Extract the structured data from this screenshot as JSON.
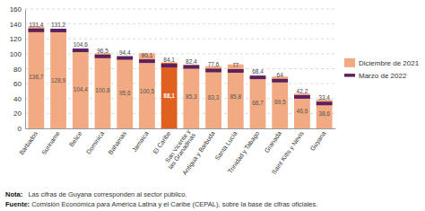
{
  "chart_data": {
    "type": "bar",
    "categories": [
      "Barbados",
      "Suriname",
      "Belice",
      "Dominica",
      "Bahamas",
      "Jamaica",
      "El Caribe",
      "San Vicente y\nlas Granadinas",
      "Antigua y Barbuda",
      "Santa Lucía",
      "Trinidad y Tabago",
      "Granada",
      "Saint Kitts y Nevis",
      "Guyana"
    ],
    "series": [
      {
        "name": "Diciembre de 2021",
        "type": "bar",
        "colors": [
          "#f2aa82",
          "#f2aa82",
          "#f2aa82",
          "#f2aa82",
          "#f2aa82",
          "#f2aa82",
          "#e06020",
          "#f2aa82",
          "#f2aa82",
          "#f2aa82",
          "#f2aa82",
          "#f2aa82",
          "#f2aa82",
          "#f2aa82"
        ],
        "values": [
          136.7,
          128.9,
          104.4,
          100.8,
          95.6,
          100.5,
          88.1,
          85.3,
          83.3,
          85.8,
          68.7,
          69.5,
          46.6,
          38.6
        ],
        "value_labels": [
          "136,7",
          "128,9",
          "104,4",
          "100,8",
          "95,6",
          "100,5",
          "88,1",
          "85,3",
          "83,3",
          "85,8",
          "68,7",
          "69,5",
          "46,6",
          "38,6"
        ]
      },
      {
        "name": "Marzo de 2022",
        "type": "scatter",
        "marker": "hline",
        "color": "#5b2060",
        "values": [
          131.4,
          131.2,
          104.6,
          96.5,
          94.4,
          90.1,
          84.1,
          82.4,
          77.6,
          77.0,
          68.4,
          64.0,
          42.2,
          33.4
        ],
        "value_labels": [
          "131,4",
          "131,2",
          "104,6",
          "96,5",
          "94,4",
          "90,1",
          "84,1",
          "82,4",
          "77,6",
          "77",
          "68,4",
          "64",
          "42,2",
          "33,4"
        ]
      }
    ],
    "ylim": [
      0,
      160
    ],
    "yticks": [
      0,
      20,
      40,
      60,
      80,
      100,
      120,
      140,
      160
    ],
    "grid": true,
    "legend": "right",
    "data_labels": true,
    "annotations": [
      {
        "label": "Fuente:",
        "text": " Comisión Económica para América Latina y el Caribe (CEPAL), sobre la base de cifras oficiales."
      },
      {
        "label": "Nota:",
        "text": "   Las cifras de Guyana corresponden al sector público."
      }
    ]
  }
}
